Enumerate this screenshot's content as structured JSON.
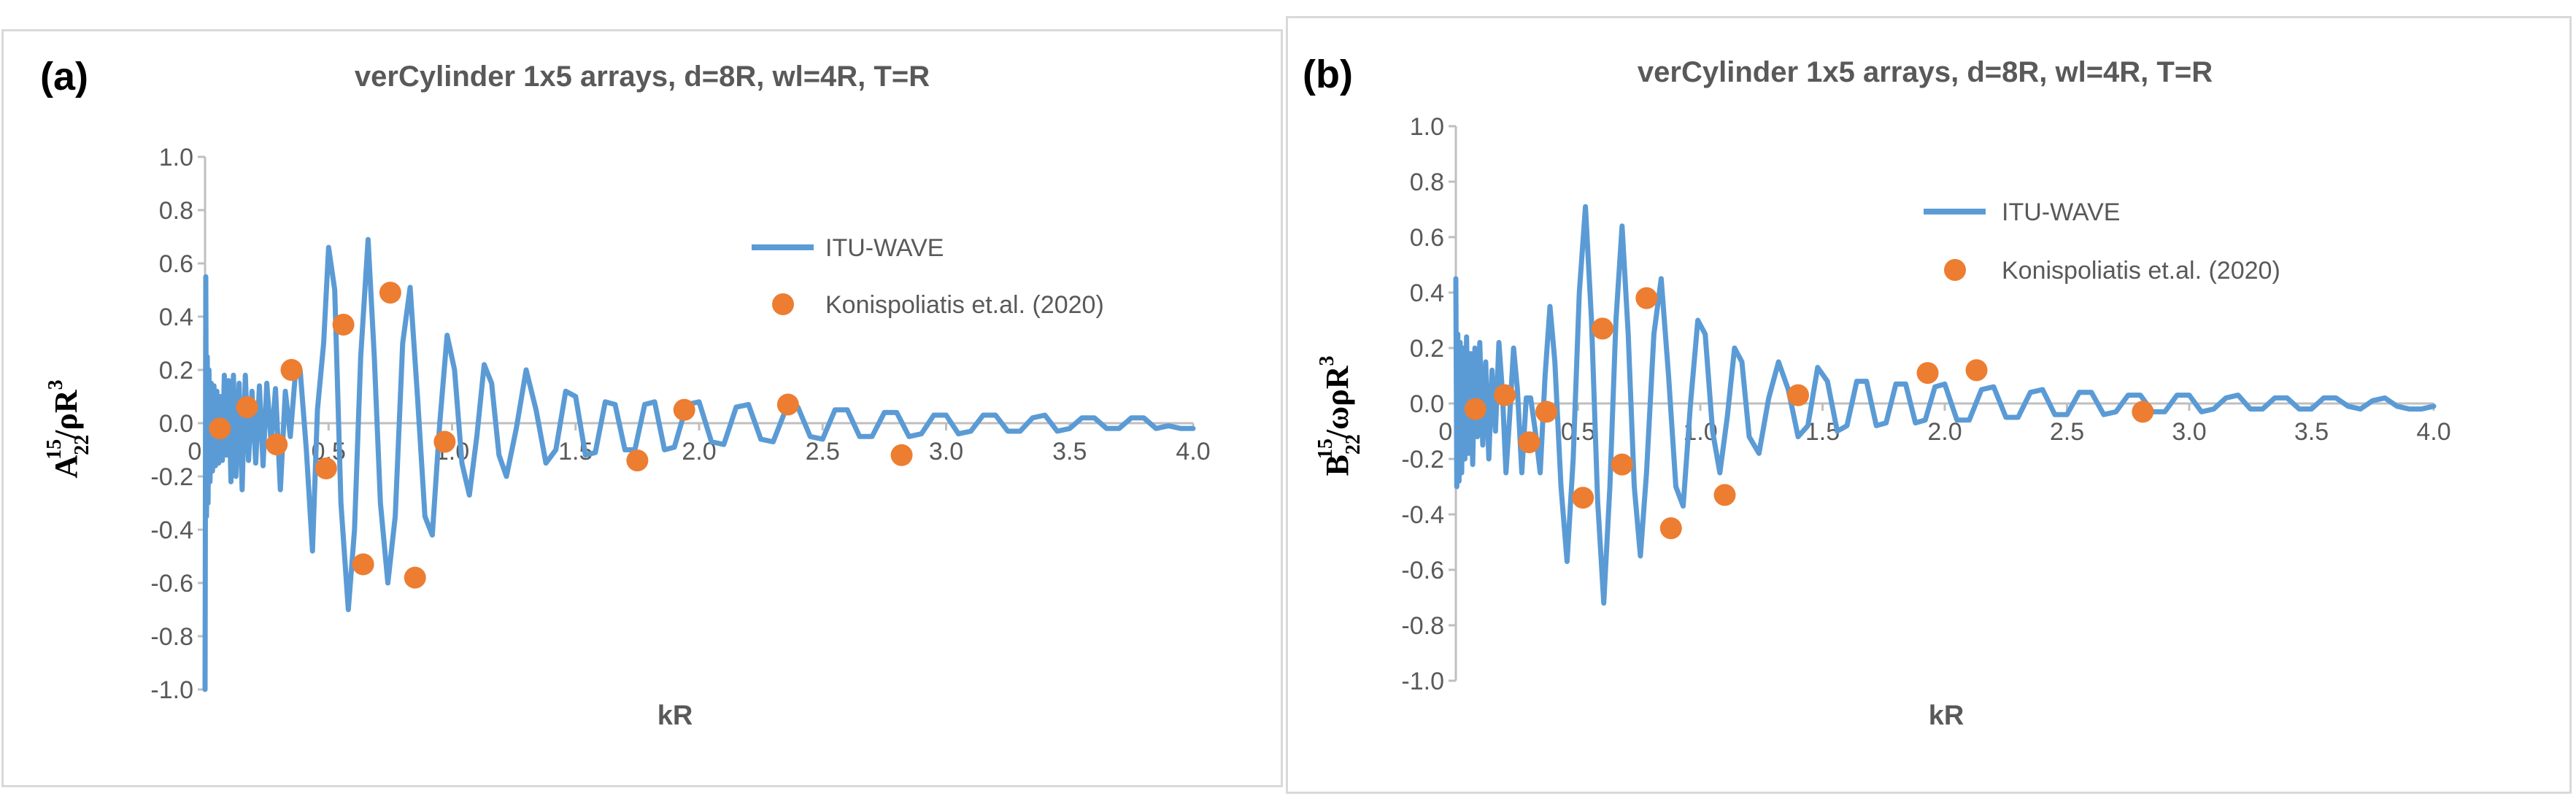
{
  "colors": {
    "line": "#5b9bd5",
    "marker": "#ed7d31",
    "axis": "#bfbfbf",
    "text": "#595959",
    "border": "#d9d9d9"
  },
  "panels": [
    {
      "letter": "(a)",
      "ylabel": {
        "base": "A",
        "sup": "15",
        "sub": "22",
        "rest": "/ρR",
        "rest_sup": "3"
      }
    },
    {
      "letter": "(b)",
      "ylabel": {
        "base": "B",
        "sup": "15",
        "sub": "22",
        "rest": "/ωρR",
        "rest_sup": "3"
      }
    }
  ],
  "chart_data": [
    {
      "type": "scatter",
      "title": "verCylinder 1x5 arrays, d=8R, wl=4R, T=R",
      "xlabel": "kR",
      "ylabel": "A22^15/ρR^3",
      "xlim": [
        0,
        4
      ],
      "ylim": [
        -1,
        1
      ],
      "xticks": [
        "0.0",
        "0.5",
        "1.0",
        "1.5",
        "2.0",
        "2.5",
        "3.0",
        "3.5",
        "4.0"
      ],
      "yticks": [
        "1.0",
        "0.8",
        "0.6",
        "0.4",
        "0.2",
        "0.0",
        "-0.2",
        "-0.4",
        "-0.6",
        "-0.8",
        "-1.0"
      ],
      "grid": false,
      "legend_position": "right",
      "series": [
        {
          "name": "ITU-WAVE",
          "kind": "line",
          "x": [
            0.0,
            0.003,
            0.006,
            0.009,
            0.012,
            0.016,
            0.02,
            0.025,
            0.03,
            0.036,
            0.042,
            0.048,
            0.055,
            0.062,
            0.07,
            0.078,
            0.086,
            0.095,
            0.105,
            0.115,
            0.125,
            0.138,
            0.15,
            0.163,
            0.176,
            0.19,
            0.205,
            0.22,
            0.235,
            0.25,
            0.268,
            0.285,
            0.305,
            0.325,
            0.345,
            0.365,
            0.385,
            0.41,
            0.435,
            0.455,
            0.48,
            0.5,
            0.525,
            0.55,
            0.58,
            0.605,
            0.63,
            0.66,
            0.685,
            0.71,
            0.74,
            0.77,
            0.8,
            0.83,
            0.86,
            0.89,
            0.92,
            0.95,
            0.98,
            1.01,
            1.04,
            1.07,
            1.1,
            1.13,
            1.16,
            1.19,
            1.22,
            1.26,
            1.3,
            1.34,
            1.38,
            1.42,
            1.46,
            1.5,
            1.54,
            1.58,
            1.62,
            1.66,
            1.7,
            1.74,
            1.78,
            1.82,
            1.86,
            1.9,
            1.95,
            2.0,
            2.05,
            2.1,
            2.15,
            2.2,
            2.25,
            2.3,
            2.35,
            2.4,
            2.45,
            2.5,
            2.55,
            2.6,
            2.65,
            2.7,
            2.75,
            2.8,
            2.85,
            2.9,
            2.95,
            3.0,
            3.05,
            3.1,
            3.15,
            3.2,
            3.25,
            3.3,
            3.35,
            3.4,
            3.45,
            3.5,
            3.55,
            3.6,
            3.65,
            3.7,
            3.75,
            3.8,
            3.85,
            3.9,
            3.95,
            4.0
          ],
          "y": [
            -1.0,
            0.55,
            -0.35,
            0.25,
            -0.3,
            0.2,
            -0.22,
            0.15,
            -0.18,
            0.14,
            -0.16,
            0.12,
            -0.15,
            0.1,
            -0.14,
            0.18,
            -0.12,
            0.16,
            -0.22,
            0.18,
            -0.2,
            0.15,
            -0.25,
            0.18,
            -0.14,
            0.12,
            -0.15,
            0.14,
            -0.16,
            0.15,
            -0.08,
            0.13,
            -0.25,
            0.12,
            -0.05,
            0.18,
            0.2,
            -0.1,
            -0.48,
            0.05,
            0.3,
            0.66,
            0.5,
            -0.3,
            -0.7,
            -0.4,
            0.25,
            0.69,
            0.25,
            -0.3,
            -0.6,
            -0.35,
            0.3,
            0.51,
            0.1,
            -0.35,
            -0.42,
            0.0,
            0.33,
            0.2,
            -0.15,
            -0.27,
            -0.05,
            0.22,
            0.15,
            -0.12,
            -0.2,
            -0.02,
            0.2,
            0.05,
            -0.15,
            -0.1,
            0.12,
            0.1,
            -0.12,
            -0.11,
            0.08,
            0.07,
            -0.1,
            -0.1,
            0.07,
            0.08,
            -0.1,
            -0.09,
            0.07,
            0.08,
            -0.07,
            -0.08,
            0.06,
            0.07,
            -0.06,
            -0.07,
            0.05,
            0.06,
            -0.05,
            -0.06,
            0.05,
            0.05,
            -0.05,
            -0.05,
            0.04,
            0.04,
            -0.05,
            -0.04,
            0.03,
            0.03,
            -0.04,
            -0.03,
            0.03,
            0.03,
            -0.03,
            -0.03,
            0.02,
            0.03,
            -0.03,
            -0.02,
            0.02,
            0.02,
            -0.02,
            -0.02,
            0.02,
            0.02,
            -0.02,
            -0.01,
            -0.02,
            -0.02
          ]
        },
        {
          "name": "Konispoliatis et.al. (2020)",
          "kind": "markers",
          "x": [
            0.06,
            0.17,
            0.29,
            0.35,
            0.49,
            0.56,
            0.64,
            0.75,
            0.85,
            0.97,
            1.75,
            1.94,
            2.36,
            2.82
          ],
          "y": [
            -0.02,
            0.06,
            -0.08,
            0.2,
            -0.17,
            0.37,
            -0.53,
            0.49,
            -0.58,
            -0.07,
            -0.14,
            0.05,
            0.07,
            -0.12
          ]
        }
      ]
    },
    {
      "type": "scatter",
      "title": "verCylinder 1x5 arrays, d=8R, wl=4R, T=R",
      "xlabel": "kR",
      "ylabel": "B22^15/ωρR^3",
      "xlim": [
        0,
        4
      ],
      "ylim": [
        -1,
        1
      ],
      "xticks": [
        "0.0",
        "0.5",
        "1.0",
        "1.5",
        "2.0",
        "2.5",
        "3.0",
        "3.5",
        "4.0"
      ],
      "yticks": [
        "1.0",
        "0.8",
        "0.6",
        "0.4",
        "0.2",
        "0.0",
        "-0.2",
        "-0.4",
        "-0.6",
        "-0.8",
        "-1.0"
      ],
      "grid": false,
      "legend_position": "right",
      "series": [
        {
          "name": "ITU-WAVE",
          "kind": "line",
          "x": [
            0.0,
            0.004,
            0.008,
            0.013,
            0.018,
            0.024,
            0.03,
            0.037,
            0.044,
            0.052,
            0.06,
            0.069,
            0.078,
            0.088,
            0.098,
            0.11,
            0.122,
            0.135,
            0.148,
            0.162,
            0.176,
            0.19,
            0.205,
            0.22,
            0.236,
            0.252,
            0.27,
            0.288,
            0.306,
            0.325,
            0.345,
            0.365,
            0.385,
            0.405,
            0.43,
            0.455,
            0.48,
            0.505,
            0.53,
            0.555,
            0.58,
            0.605,
            0.63,
            0.655,
            0.68,
            0.705,
            0.73,
            0.755,
            0.78,
            0.81,
            0.84,
            0.87,
            0.9,
            0.93,
            0.96,
            0.99,
            1.02,
            1.05,
            1.08,
            1.11,
            1.14,
            1.17,
            1.2,
            1.24,
            1.28,
            1.32,
            1.36,
            1.4,
            1.44,
            1.48,
            1.52,
            1.56,
            1.6,
            1.64,
            1.68,
            1.72,
            1.76,
            1.8,
            1.84,
            1.88,
            1.92,
            1.96,
            2.0,
            2.05,
            2.1,
            2.15,
            2.2,
            2.25,
            2.3,
            2.35,
            2.4,
            2.45,
            2.5,
            2.55,
            2.6,
            2.65,
            2.7,
            2.75,
            2.8,
            2.85,
            2.9,
            2.95,
            3.0,
            3.05,
            3.1,
            3.15,
            3.2,
            3.25,
            3.3,
            3.35,
            3.4,
            3.45,
            3.5,
            3.55,
            3.6,
            3.65,
            3.7,
            3.75,
            3.8,
            3.85,
            3.9,
            3.95,
            4.0
          ],
          "y": [
            0.45,
            -0.3,
            0.25,
            -0.28,
            0.22,
            -0.25,
            0.2,
            -0.2,
            0.24,
            -0.18,
            0.18,
            -0.22,
            0.2,
            -0.12,
            0.22,
            -0.15,
            0.15,
            -0.2,
            0.12,
            -0.1,
            0.22,
            0.05,
            -0.25,
            -0.05,
            0.2,
            0.05,
            -0.25,
            0.02,
            0.02,
            -0.1,
            -0.25,
            0.1,
            0.35,
            0.15,
            -0.3,
            -0.57,
            -0.2,
            0.4,
            0.71,
            0.3,
            -0.35,
            -0.72,
            -0.3,
            0.3,
            0.64,
            0.25,
            -0.3,
            -0.55,
            -0.25,
            0.25,
            0.45,
            0.1,
            -0.3,
            -0.37,
            0.0,
            0.3,
            0.25,
            -0.1,
            -0.25,
            -0.05,
            0.2,
            0.15,
            -0.12,
            -0.18,
            0.02,
            0.15,
            0.05,
            -0.12,
            -0.08,
            0.13,
            0.08,
            -0.1,
            -0.08,
            0.08,
            0.08,
            -0.08,
            -0.07,
            0.07,
            0.07,
            -0.07,
            -0.06,
            0.06,
            0.07,
            -0.06,
            -0.06,
            0.05,
            0.06,
            -0.05,
            -0.05,
            0.04,
            0.05,
            -0.04,
            -0.04,
            0.04,
            0.04,
            -0.04,
            -0.03,
            0.03,
            0.03,
            -0.03,
            -0.03,
            0.03,
            0.03,
            -0.03,
            -0.02,
            0.02,
            0.03,
            -0.02,
            -0.02,
            0.02,
            0.02,
            -0.02,
            -0.02,
            0.02,
            0.02,
            -0.01,
            -0.02,
            0.01,
            0.02,
            -0.01,
            -0.02,
            -0.02,
            -0.01
          ]
        },
        {
          "name": "Konispoliatis et.al. (2020)",
          "kind": "markers",
          "x": [
            0.08,
            0.2,
            0.3,
            0.37,
            0.52,
            0.6,
            0.68,
            0.78,
            0.88,
            1.1,
            1.4,
            1.93,
            2.13,
            2.81
          ],
          "y": [
            -0.02,
            0.03,
            -0.14,
            -0.03,
            -0.34,
            0.27,
            -0.22,
            0.38,
            -0.45,
            -0.33,
            0.03,
            0.11,
            0.12,
            -0.03
          ]
        }
      ]
    }
  ]
}
